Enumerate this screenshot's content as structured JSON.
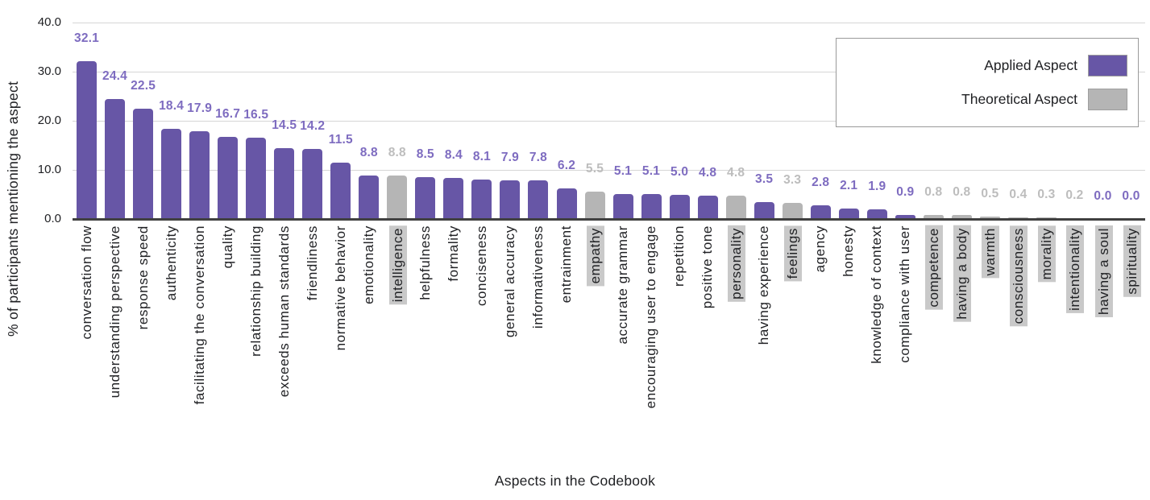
{
  "chart_data": {
    "type": "bar",
    "title": "",
    "xlabel": "Aspects in the Codebook",
    "ylabel": "% of participants mentioning the aspect",
    "ylim": [
      0,
      40
    ],
    "yticks": [
      0,
      10,
      20,
      30,
      40
    ],
    "ytick_labels": [
      "0.0",
      "10.0",
      "20.0",
      "30.0",
      "40.0"
    ],
    "grid": true,
    "value_labels_shown": true,
    "legend": {
      "position": "top-right",
      "entries": [
        {
          "label": "Applied Aspect",
          "type": "applied"
        },
        {
          "label": "Theoretical Aspect",
          "type": "theoretical"
        }
      ]
    },
    "colors": {
      "applied_bar": "#6756a6",
      "theoretical_bar": "#b5b5b5",
      "applied_value_label": "#7e6cc0",
      "theoretical_value_label": "#bdbdbd",
      "category_highlight_bg": "#c9c9c9",
      "gridline": "#d6d6d6",
      "axis_line": "#404040",
      "text": "#202124",
      "legend_border": "#9a9a9a"
    },
    "bars": [
      {
        "label": "conversation flow",
        "value": 32.1,
        "type": "applied"
      },
      {
        "label": "understanding perspective",
        "value": 24.4,
        "type": "applied"
      },
      {
        "label": "response speed",
        "value": 22.5,
        "type": "applied"
      },
      {
        "label": "authenticity",
        "value": 18.4,
        "type": "applied"
      },
      {
        "label": "facilitating the conversation",
        "value": 17.9,
        "type": "applied"
      },
      {
        "label": "quality",
        "value": 16.7,
        "type": "applied"
      },
      {
        "label": "relationship building",
        "value": 16.5,
        "type": "applied"
      },
      {
        "label": "exceeds human standards",
        "value": 14.5,
        "type": "applied"
      },
      {
        "label": "friendliness",
        "value": 14.2,
        "type": "applied"
      },
      {
        "label": "normative behavior",
        "value": 11.5,
        "type": "applied"
      },
      {
        "label": "emotionality",
        "value": 8.8,
        "type": "applied"
      },
      {
        "label": "intelligence",
        "value": 8.8,
        "type": "theoretical"
      },
      {
        "label": "helpfulness",
        "value": 8.5,
        "type": "applied"
      },
      {
        "label": "formality",
        "value": 8.4,
        "type": "applied"
      },
      {
        "label": "conciseness",
        "value": 8.1,
        "type": "applied"
      },
      {
        "label": "general accuracy",
        "value": 7.9,
        "type": "applied"
      },
      {
        "label": "informativeness",
        "value": 7.8,
        "type": "applied"
      },
      {
        "label": "entrainment",
        "value": 6.2,
        "type": "applied"
      },
      {
        "label": "empathy",
        "value": 5.5,
        "type": "theoretical"
      },
      {
        "label": "accurate grammar",
        "value": 5.1,
        "type": "applied"
      },
      {
        "label": "encouraging user to engage",
        "value": 5.1,
        "type": "applied"
      },
      {
        "label": "repetition",
        "value": 5.0,
        "type": "applied"
      },
      {
        "label": "positive tone",
        "value": 4.8,
        "type": "applied"
      },
      {
        "label": "personality",
        "value": 4.8,
        "type": "theoretical"
      },
      {
        "label": "having experience",
        "value": 3.5,
        "type": "applied"
      },
      {
        "label": "feelings",
        "value": 3.3,
        "type": "theoretical"
      },
      {
        "label": "agency",
        "value": 2.8,
        "type": "applied"
      },
      {
        "label": "honesty",
        "value": 2.1,
        "type": "applied"
      },
      {
        "label": "knowledge of context",
        "value": 1.9,
        "type": "applied"
      },
      {
        "label": "compliance with user",
        "value": 0.9,
        "type": "applied"
      },
      {
        "label": "competence",
        "value": 0.8,
        "type": "theoretical"
      },
      {
        "label": "having a body",
        "value": 0.8,
        "type": "theoretical"
      },
      {
        "label": "warmth",
        "value": 0.5,
        "type": "theoretical"
      },
      {
        "label": "consciousness",
        "value": 0.4,
        "type": "theoretical"
      },
      {
        "label": "morality",
        "value": 0.3,
        "type": "theoretical"
      },
      {
        "label": "intentionality",
        "value": 0.2,
        "type": "theoretical"
      },
      {
        "label": "having a soul",
        "value": 0.0,
        "type": "theoretical",
        "value_label_color": "applied"
      },
      {
        "label": "spirituality",
        "value": 0.0,
        "type": "theoretical",
        "value_label_color": "applied"
      }
    ]
  }
}
